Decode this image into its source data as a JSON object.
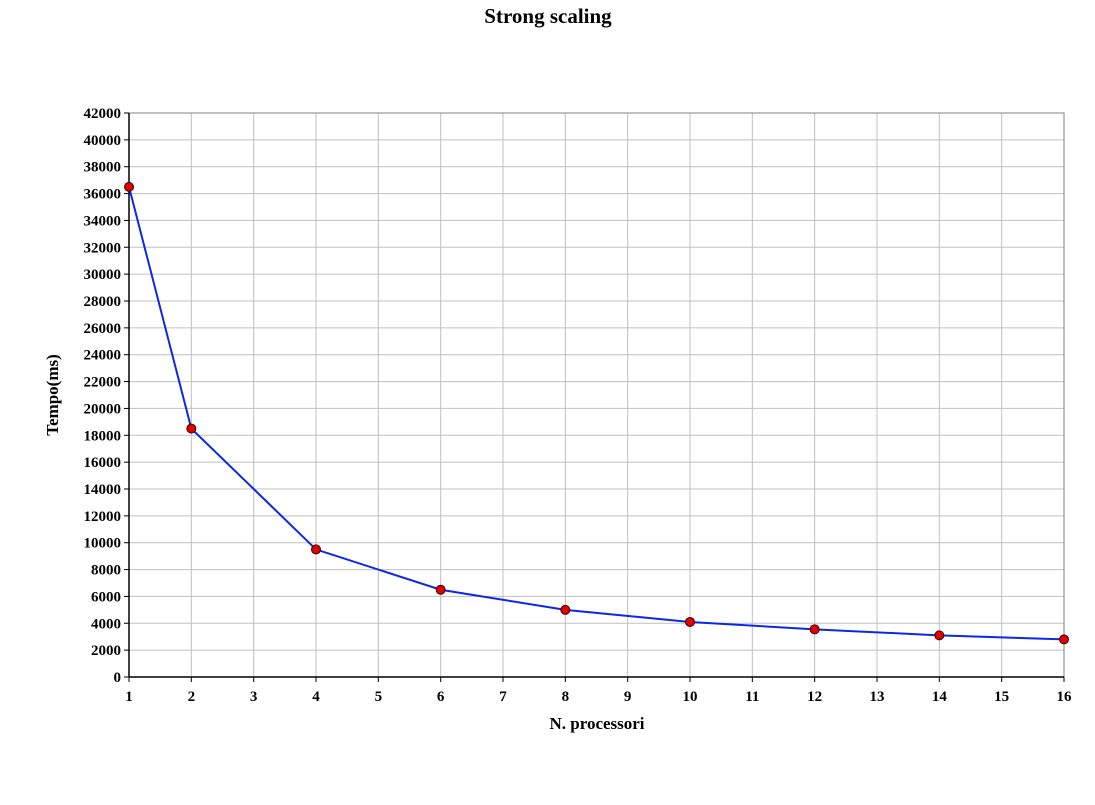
{
  "chart_data": {
    "type": "line",
    "title": "Strong scaling",
    "xlabel": "N. processori",
    "ylabel": "Tempo(ms)",
    "x_ticks": [
      1,
      2,
      3,
      4,
      5,
      6,
      7,
      8,
      9,
      10,
      11,
      12,
      13,
      14,
      15,
      16
    ],
    "ylim": [
      0,
      42000
    ],
    "y_step": 2000,
    "grid": true,
    "series": [
      {
        "x": [
          1,
          2,
          4,
          6,
          8,
          10,
          12,
          14,
          16
        ],
        "y": [
          36500,
          18500,
          9500,
          6500,
          5000,
          4100,
          3550,
          3100,
          2800
        ],
        "line_color": "#0a28e6",
        "marker_color": "#e00000"
      }
    ]
  }
}
